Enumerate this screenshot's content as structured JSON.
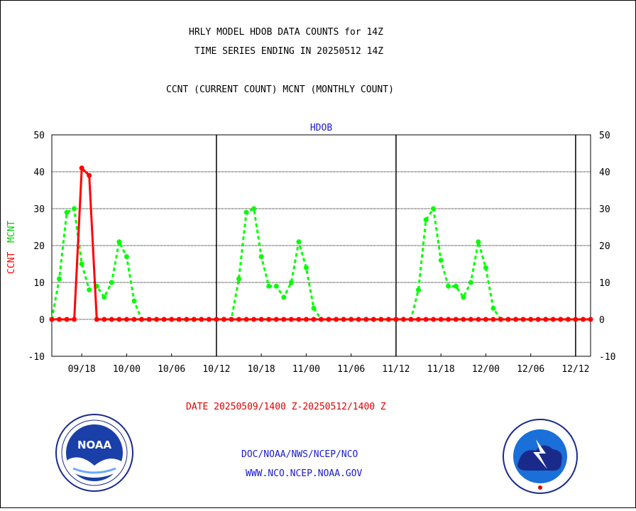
{
  "header": {
    "line1": "HRLY MODEL HDOB DATA COUNTS for 14Z",
    "line2": "TIME SERIES ENDING IN 20250512 14Z",
    "line3": "CCNT (CURRENT COUNT) MCNT (MONTHLY COUNT)"
  },
  "ylabels": {
    "ccnt": "CCNT",
    "mcnt": "MCNT"
  },
  "footer": {
    "date_range": "DATE 20250509/1400 Z-20250512/1400 Z",
    "org": "DOC/NOAA/NWS/NCEP/NCO",
    "url": "WWW.NCO.NCEP.NOAA.GOV"
  },
  "logos": {
    "noaa": "NOAA",
    "nws": "NATIONAL WEATHER SERVICE"
  },
  "colors": {
    "ccnt": "#ff0000",
    "mcnt": "#00ff00",
    "text_blue": "#1a1acc",
    "date_red": "#e00000"
  },
  "chart_data": {
    "type": "line",
    "title": "HDOB",
    "ylim": [
      -10,
      50
    ],
    "yticks": [
      -10,
      0,
      10,
      20,
      30,
      40,
      50
    ],
    "xlim": [
      0,
      72
    ],
    "xticks": [
      {
        "x": 4,
        "label": "09/18"
      },
      {
        "x": 10,
        "label": "10/00"
      },
      {
        "x": 16,
        "label": "10/06"
      },
      {
        "x": 22,
        "label": "10/12"
      },
      {
        "x": 28,
        "label": "10/18"
      },
      {
        "x": 34,
        "label": "11/00"
      },
      {
        "x": 40,
        "label": "11/06"
      },
      {
        "x": 46,
        "label": "11/12"
      },
      {
        "x": 52,
        "label": "11/18"
      },
      {
        "x": 58,
        "label": "12/00"
      },
      {
        "x": 64,
        "label": "12/06"
      },
      {
        "x": 70,
        "label": "12/12"
      }
    ],
    "day_dividers": [
      22,
      46,
      70
    ],
    "grid": true,
    "series": [
      {
        "name": "CCNT",
        "style": "solid",
        "values": [
          0,
          0,
          0,
          0,
          41,
          39,
          0,
          0,
          0,
          0,
          0,
          0,
          0,
          0,
          0,
          0,
          0,
          0,
          0,
          0,
          0,
          0,
          0,
          0,
          0,
          0,
          0,
          0,
          0,
          0,
          0,
          0,
          0,
          0,
          0,
          0,
          0,
          0,
          0,
          0,
          0,
          0,
          0,
          0,
          0,
          0,
          0,
          0,
          0,
          0,
          0,
          0,
          0,
          0,
          0,
          0,
          0,
          0,
          0,
          0,
          0,
          0,
          0,
          0,
          0,
          0,
          0,
          0,
          0,
          0,
          0,
          0,
          0
        ],
        "start_x": 0
      },
      {
        "name": "MCNT",
        "style": "dashed",
        "values": [
          0,
          11,
          29,
          30,
          15,
          8,
          9,
          6,
          10,
          21,
          17,
          5,
          0,
          0,
          0,
          0,
          0,
          0,
          0,
          0,
          0,
          0,
          0,
          0,
          0,
          11,
          29,
          30,
          17,
          9,
          9,
          6,
          10,
          21,
          14,
          3,
          0,
          0,
          0,
          0,
          0,
          0,
          0,
          0,
          0,
          0,
          0,
          0,
          0,
          8,
          27,
          30,
          16,
          9,
          9,
          6,
          10,
          21,
          14,
          3,
          0,
          0,
          0,
          0,
          0,
          0,
          0,
          0,
          0,
          0,
          0,
          0,
          0
        ],
        "start_x": 0
      }
    ]
  }
}
